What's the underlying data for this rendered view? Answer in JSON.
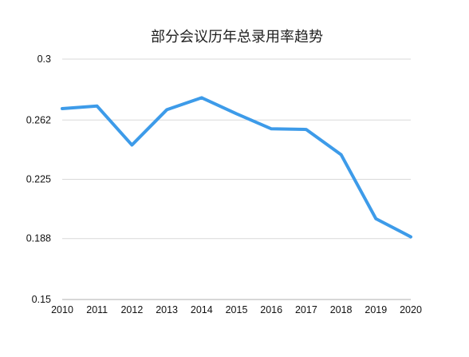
{
  "chart_data": {
    "type": "line",
    "title": "部分会议历年总录用率趋势",
    "xlabel": "",
    "ylabel": "",
    "categories": [
      "2010",
      "2011",
      "2012",
      "2013",
      "2014",
      "2015",
      "2016",
      "2017",
      "2018",
      "2019",
      "2020"
    ],
    "series": [
      {
        "values": [
          0.2691,
          0.2707,
          0.2464,
          0.2684,
          0.2759,
          0.2659,
          0.2565,
          0.2561,
          0.2404,
          0.2004,
          0.1891
        ]
      }
    ],
    "yticks": [
      "0.15",
      "0.188",
      "0.225",
      "0.262",
      "0.3"
    ],
    "ylim": [
      0.15,
      0.3
    ],
    "grid": true,
    "line_color": "#3d9be9"
  }
}
